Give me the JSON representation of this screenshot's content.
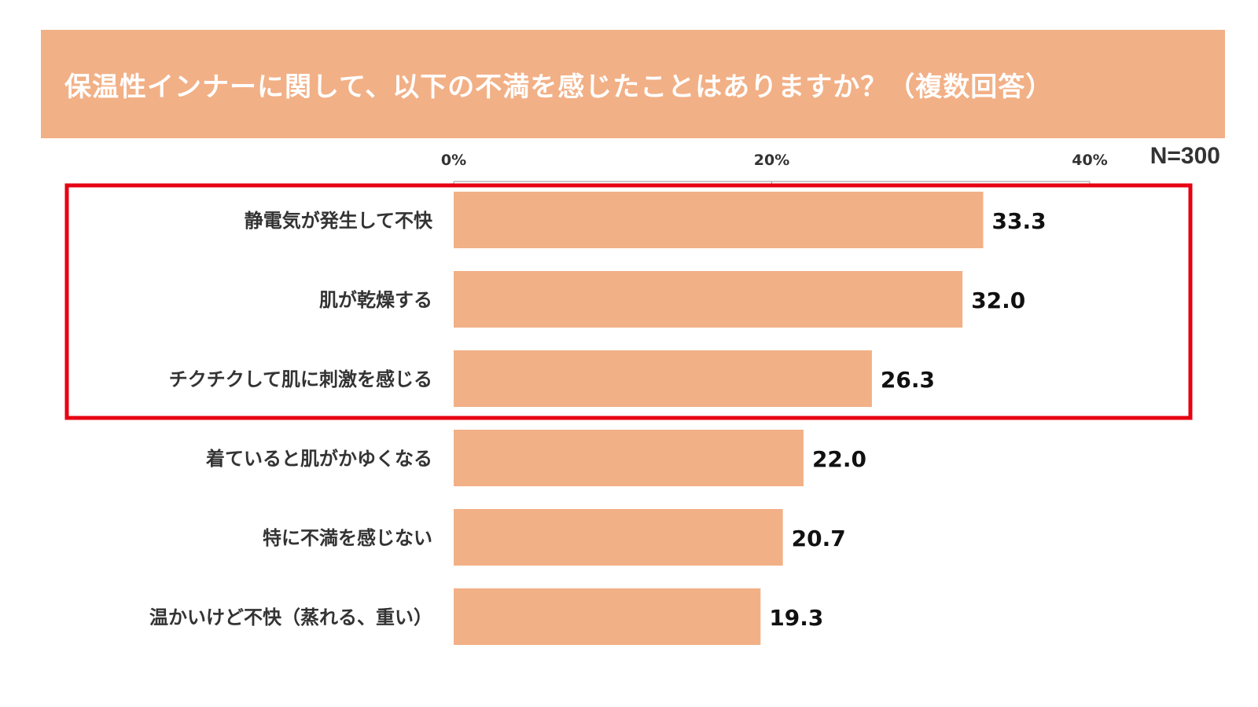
{
  "title": "保温性インナーに関して、以下の不満を感じたことはありますか？（複数回答）",
  "sample_size": "N=300",
  "colors": {
    "banner": "#f2b086",
    "bar": "#f2b086",
    "highlight_box": "#e60012",
    "axis": "#999999"
  },
  "chart_data": {
    "type": "bar",
    "orientation": "horizontal",
    "title": "保温性インナーに関して、以下の不満を感じたことはありますか？（複数回答）",
    "xlabel": "",
    "ylabel": "",
    "xlim": [
      0,
      40
    ],
    "x_ticks": [
      0,
      20,
      40
    ],
    "x_tick_labels": [
      "0%",
      "20%",
      "40%"
    ],
    "categories": [
      "静電気が発生して不快",
      "肌が乾燥する",
      "チクチクして肌に刺激を感じる",
      "着ていると肌がかゆくなる",
      "特に不満を感じない",
      "温かいけど不快（蒸れる、重い）"
    ],
    "values": [
      33.3,
      32.0,
      26.3,
      22.0,
      20.7,
      19.3
    ],
    "value_labels": [
      "33.3",
      "32.0",
      "26.3",
      "22.0",
      "20.7",
      "19.3"
    ],
    "highlighted_categories": [
      0,
      1,
      2
    ],
    "grid": false
  }
}
